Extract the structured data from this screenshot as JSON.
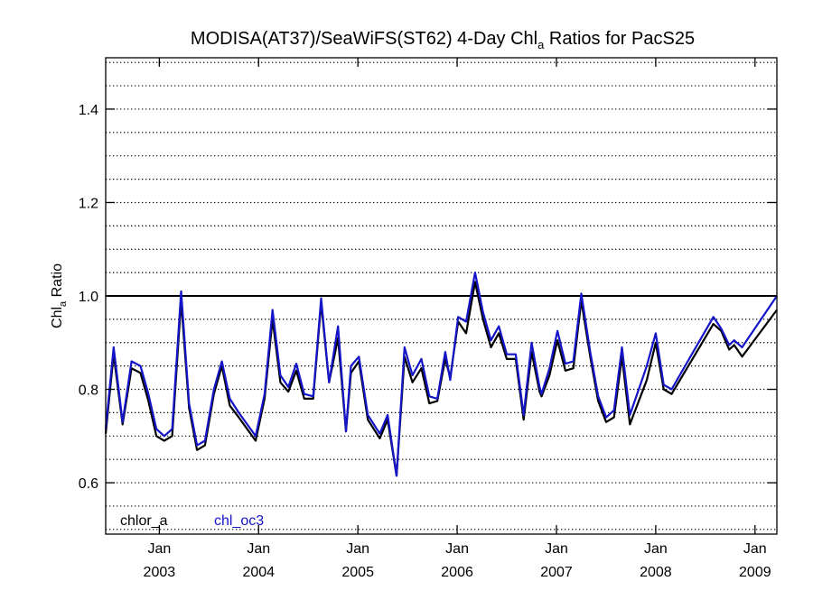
{
  "chart_data": {
    "type": "line",
    "title": "MODISA(AT37)/SeaWiFS(ST62) 4-Day Chl",
    "title_sub": "a",
    "title_suffix": " Ratios for PacS25",
    "ylabel_main": "Chl",
    "ylabel_sub": "a",
    "ylabel_suffix": " Ratio",
    "ylim": [
      0.49,
      1.51
    ],
    "xlim": [
      2002.46,
      2009.22
    ],
    "y_ticks": [
      0.6,
      0.8,
      1.0,
      1.2,
      1.4
    ],
    "y_tick_labels": [
      "0.6",
      "0.8",
      "1.0",
      "1.2",
      "1.4"
    ],
    "y_minor_step": 0.05,
    "grid": "horizontal dotted",
    "reference_line": 1.0,
    "x_ticks": [
      {
        "x": 2003.0,
        "month": "Jan",
        "year": "2003"
      },
      {
        "x": 2004.0,
        "month": "Jan",
        "year": "2004"
      },
      {
        "x": 2005.0,
        "month": "Jan",
        "year": "2005"
      },
      {
        "x": 2006.0,
        "month": "Jan",
        "year": "2006"
      },
      {
        "x": 2007.0,
        "month": "Jan",
        "year": "2007"
      },
      {
        "x": 2008.0,
        "month": "Jan",
        "year": "2008"
      },
      {
        "x": 2009.0,
        "month": "Jan",
        "year": "2009"
      }
    ],
    "legend_position": "bottom-left",
    "series": [
      {
        "name": "chlor_a",
        "color": "#000000",
        "points": [
          [
            2002.46,
            0.705
          ],
          [
            2002.54,
            0.875
          ],
          [
            2002.63,
            0.725
          ],
          [
            2002.72,
            0.845
          ],
          [
            2002.81,
            0.835
          ],
          [
            2002.89,
            0.775
          ],
          [
            2002.97,
            0.7
          ],
          [
            2003.05,
            0.69
          ],
          [
            2003.13,
            0.7
          ],
          [
            2003.22,
            0.99
          ],
          [
            2003.3,
            0.76
          ],
          [
            2003.38,
            0.67
          ],
          [
            2003.46,
            0.68
          ],
          [
            2003.55,
            0.79
          ],
          [
            2003.63,
            0.85
          ],
          [
            2003.71,
            0.765
          ],
          [
            2003.8,
            0.74
          ],
          [
            2003.97,
            0.69
          ],
          [
            2004.06,
            0.78
          ],
          [
            2004.14,
            0.95
          ],
          [
            2004.22,
            0.815
          ],
          [
            2004.3,
            0.795
          ],
          [
            2004.38,
            0.84
          ],
          [
            2004.46,
            0.78
          ],
          [
            2004.55,
            0.78
          ],
          [
            2004.63,
            0.985
          ],
          [
            2004.71,
            0.815
          ],
          [
            2004.8,
            0.91
          ],
          [
            2004.88,
            0.71
          ],
          [
            2004.93,
            0.835
          ],
          [
            2005.01,
            0.86
          ],
          [
            2005.1,
            0.735
          ],
          [
            2005.22,
            0.695
          ],
          [
            2005.3,
            0.735
          ],
          [
            2005.39,
            0.615
          ],
          [
            2005.47,
            0.87
          ],
          [
            2005.55,
            0.815
          ],
          [
            2005.64,
            0.845
          ],
          [
            2005.72,
            0.77
          ],
          [
            2005.8,
            0.775
          ],
          [
            2005.88,
            0.865
          ],
          [
            2005.93,
            0.825
          ],
          [
            2006.01,
            0.945
          ],
          [
            2006.09,
            0.92
          ],
          [
            2006.18,
            1.03
          ],
          [
            2006.26,
            0.95
          ],
          [
            2006.34,
            0.89
          ],
          [
            2006.42,
            0.92
          ],
          [
            2006.5,
            0.865
          ],
          [
            2006.59,
            0.865
          ],
          [
            2006.67,
            0.735
          ],
          [
            2006.75,
            0.88
          ],
          [
            2006.83,
            0.795
          ],
          [
            2006.85,
            0.785
          ],
          [
            2006.93,
            0.83
          ],
          [
            2007.01,
            0.905
          ],
          [
            2007.09,
            0.84
          ],
          [
            2007.17,
            0.845
          ],
          [
            2007.25,
            0.99
          ],
          [
            2007.34,
            0.87
          ],
          [
            2007.42,
            0.775
          ],
          [
            2007.5,
            0.73
          ],
          [
            2007.58,
            0.74
          ],
          [
            2007.66,
            0.87
          ],
          [
            2007.74,
            0.725
          ],
          [
            2007.91,
            0.82
          ],
          [
            2008.0,
            0.9
          ],
          [
            2008.08,
            0.8
          ],
          [
            2008.16,
            0.79
          ],
          [
            2008.58,
            0.94
          ],
          [
            2008.66,
            0.925
          ],
          [
            2008.74,
            0.885
          ],
          [
            2008.79,
            0.895
          ],
          [
            2008.87,
            0.87
          ],
          [
            2009.22,
            0.97
          ]
        ]
      },
      {
        "name": "chl_oc3",
        "color": "#1414c8",
        "points": [
          [
            2002.46,
            0.715
          ],
          [
            2002.54,
            0.89
          ],
          [
            2002.63,
            0.73
          ],
          [
            2002.72,
            0.86
          ],
          [
            2002.81,
            0.85
          ],
          [
            2002.89,
            0.79
          ],
          [
            2002.97,
            0.715
          ],
          [
            2003.05,
            0.7
          ],
          [
            2003.13,
            0.715
          ],
          [
            2003.22,
            1.01
          ],
          [
            2003.3,
            0.77
          ],
          [
            2003.38,
            0.68
          ],
          [
            2003.46,
            0.69
          ],
          [
            2003.55,
            0.8
          ],
          [
            2003.63,
            0.86
          ],
          [
            2003.71,
            0.78
          ],
          [
            2003.8,
            0.75
          ],
          [
            2003.97,
            0.7
          ],
          [
            2004.06,
            0.79
          ],
          [
            2004.14,
            0.97
          ],
          [
            2004.22,
            0.83
          ],
          [
            2004.3,
            0.805
          ],
          [
            2004.38,
            0.855
          ],
          [
            2004.46,
            0.79
          ],
          [
            2004.55,
            0.785
          ],
          [
            2004.63,
            0.995
          ],
          [
            2004.71,
            0.815
          ],
          [
            2004.8,
            0.935
          ],
          [
            2004.88,
            0.71
          ],
          [
            2004.93,
            0.85
          ],
          [
            2005.01,
            0.87
          ],
          [
            2005.1,
            0.745
          ],
          [
            2005.22,
            0.705
          ],
          [
            2005.3,
            0.745
          ],
          [
            2005.39,
            0.615
          ],
          [
            2005.47,
            0.89
          ],
          [
            2005.55,
            0.83
          ],
          [
            2005.64,
            0.865
          ],
          [
            2005.72,
            0.785
          ],
          [
            2005.8,
            0.78
          ],
          [
            2005.88,
            0.88
          ],
          [
            2005.93,
            0.82
          ],
          [
            2006.01,
            0.955
          ],
          [
            2006.09,
            0.945
          ],
          [
            2006.18,
            1.05
          ],
          [
            2006.26,
            0.965
          ],
          [
            2006.34,
            0.905
          ],
          [
            2006.42,
            0.935
          ],
          [
            2006.5,
            0.875
          ],
          [
            2006.59,
            0.875
          ],
          [
            2006.67,
            0.745
          ],
          [
            2006.75,
            0.9
          ],
          [
            2006.83,
            0.805
          ],
          [
            2006.85,
            0.79
          ],
          [
            2006.93,
            0.845
          ],
          [
            2007.01,
            0.925
          ],
          [
            2007.09,
            0.855
          ],
          [
            2007.17,
            0.86
          ],
          [
            2007.25,
            1.005
          ],
          [
            2007.34,
            0.88
          ],
          [
            2007.42,
            0.785
          ],
          [
            2007.5,
            0.74
          ],
          [
            2007.58,
            0.755
          ],
          [
            2007.66,
            0.89
          ],
          [
            2007.74,
            0.745
          ],
          [
            2007.91,
            0.85
          ],
          [
            2008.0,
            0.92
          ],
          [
            2008.08,
            0.81
          ],
          [
            2008.16,
            0.8
          ],
          [
            2008.58,
            0.955
          ],
          [
            2008.66,
            0.93
          ],
          [
            2008.74,
            0.895
          ],
          [
            2008.79,
            0.905
          ],
          [
            2008.87,
            0.89
          ],
          [
            2009.22,
            1.0
          ]
        ]
      }
    ]
  }
}
